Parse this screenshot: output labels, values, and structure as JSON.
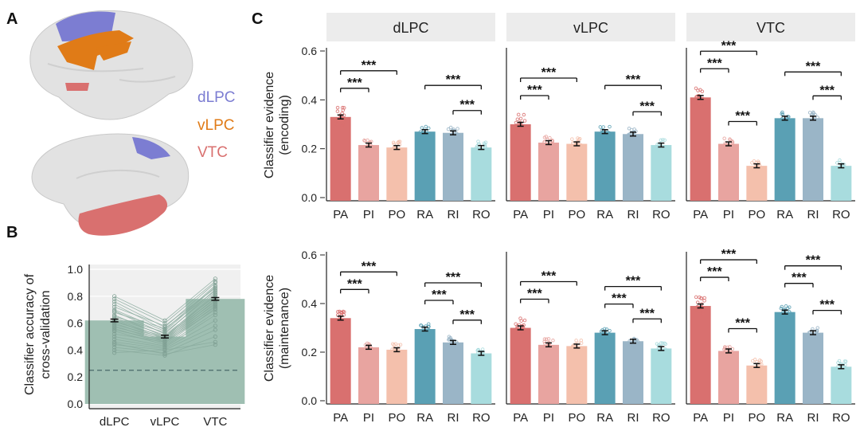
{
  "panel_labels": {
    "a": "A",
    "b": "B",
    "c": "C"
  },
  "brain_legend": [
    {
      "label": "dLPC",
      "color": "#7c7dd2"
    },
    {
      "label": "vLPC",
      "color": "#e07b17"
    },
    {
      "label": "VTC",
      "color": "#d9706f"
    }
  ],
  "chart_data": [
    {
      "type": "bar",
      "panel": "B",
      "title": "",
      "xlabel": "",
      "ylabel": "Classifier accuracy of cross-validation",
      "ylabel_lines": [
        "Classifier accuracy of",
        "cross-validation"
      ],
      "categories": [
        "dLPC",
        "vLPC",
        "VTC"
      ],
      "values": [
        0.62,
        0.5,
        0.78
      ],
      "sem": [
        0.01,
        0.01,
        0.01
      ],
      "ylim": [
        0,
        1.0
      ],
      "yticks": [
        0.0,
        0.2,
        0.4,
        0.6,
        0.8,
        1.0
      ],
      "ytick_labels": [
        "0.0",
        "0.2",
        "0.4",
        "0.6",
        "0.8",
        "1.0"
      ],
      "chance_level": 0.25,
      "bar_color": "#9fbfb2",
      "subject_lines": [
        [
          0.8,
          0.62,
          0.93
        ],
        [
          0.78,
          0.6,
          0.91
        ],
        [
          0.76,
          0.57,
          0.9
        ],
        [
          0.74,
          0.55,
          0.88
        ],
        [
          0.72,
          0.58,
          0.86
        ],
        [
          0.7,
          0.54,
          0.87
        ],
        [
          0.69,
          0.52,
          0.85
        ],
        [
          0.68,
          0.56,
          0.84
        ],
        [
          0.66,
          0.5,
          0.82
        ],
        [
          0.65,
          0.53,
          0.83
        ],
        [
          0.64,
          0.51,
          0.8
        ],
        [
          0.63,
          0.49,
          0.81
        ],
        [
          0.62,
          0.48,
          0.79
        ],
        [
          0.61,
          0.5,
          0.78
        ],
        [
          0.6,
          0.47,
          0.77
        ],
        [
          0.59,
          0.49,
          0.76
        ],
        [
          0.58,
          0.46,
          0.75
        ],
        [
          0.57,
          0.48,
          0.74
        ],
        [
          0.56,
          0.45,
          0.73
        ],
        [
          0.55,
          0.47,
          0.72
        ],
        [
          0.54,
          0.44,
          0.71
        ],
        [
          0.52,
          0.46,
          0.7
        ],
        [
          0.5,
          0.43,
          0.68
        ],
        [
          0.48,
          0.42,
          0.66
        ],
        [
          0.46,
          0.41,
          0.62
        ],
        [
          0.44,
          0.4,
          0.58
        ],
        [
          0.42,
          0.38,
          0.55
        ],
        [
          0.4,
          0.36,
          0.5
        ],
        [
          0.38,
          0.4,
          0.46
        ],
        [
          0.45,
          0.37,
          0.44
        ]
      ]
    },
    {
      "type": "bar",
      "panel": "C",
      "ylabel_lines": [
        "Classifier evidence",
        "(encoding)"
      ],
      "categories": [
        "PA",
        "PI",
        "PO",
        "RA",
        "RI",
        "RO"
      ],
      "ylim": [
        0,
        0.6
      ],
      "yticks": [
        0.0,
        0.2,
        0.4,
        0.6
      ],
      "ytick_labels": [
        "0.0",
        "0.2",
        "0.4",
        "0.6"
      ],
      "colors": [
        "#d9706f",
        "#e8a4a0",
        "#f4c0ac",
        "#5aa0b4",
        "#9ab5c7",
        "#a8dcde"
      ],
      "series": [
        {
          "name": "dLPC",
          "values": [
            0.33,
            0.215,
            0.205,
            0.27,
            0.265,
            0.205
          ],
          "sig": [
            [
              "PA",
              "PI",
              "***"
            ],
            [
              "PA",
              "PO",
              "***"
            ],
            [
              "RA",
              "RO",
              "***"
            ],
            [
              "RI",
              "RO",
              "***"
            ]
          ]
        },
        {
          "name": "vLPC",
          "values": [
            0.3,
            0.225,
            0.22,
            0.27,
            0.26,
            0.215
          ],
          "sig": [
            [
              "PA",
              "PI",
              "***"
            ],
            [
              "PA",
              "PO",
              "***"
            ],
            [
              "RA",
              "RO",
              "***"
            ],
            [
              "RI",
              "RO",
              "***"
            ]
          ]
        },
        {
          "name": "VTC",
          "values": [
            0.41,
            0.22,
            0.13,
            0.325,
            0.325,
            0.13
          ],
          "sig": [
            [
              "PA",
              "PI",
              "***"
            ],
            [
              "PA",
              "PO",
              "***"
            ],
            [
              "PI",
              "PO",
              "***"
            ],
            [
              "RA",
              "RO",
              "***"
            ],
            [
              "RI",
              "RO",
              "***"
            ]
          ]
        }
      ]
    },
    {
      "type": "bar",
      "panel": "C",
      "ylabel_lines": [
        "Classifier evidence",
        "(maintenance)"
      ],
      "categories": [
        "PA",
        "PI",
        "PO",
        "RA",
        "RI",
        "RO"
      ],
      "ylim": [
        0,
        0.6
      ],
      "yticks": [
        0.0,
        0.2,
        0.4,
        0.6
      ],
      "ytick_labels": [
        "0.0",
        "0.2",
        "0.4",
        "0.6"
      ],
      "colors": [
        "#d9706f",
        "#e8a4a0",
        "#f4c0ac",
        "#5aa0b4",
        "#9ab5c7",
        "#a8dcde"
      ],
      "series": [
        {
          "name": "dLPC",
          "values": [
            0.34,
            0.22,
            0.21,
            0.295,
            0.24,
            0.195
          ],
          "sig": [
            [
              "PA",
              "PI",
              "***"
            ],
            [
              "PA",
              "PO",
              "***"
            ],
            [
              "RA",
              "RI",
              "***"
            ],
            [
              "RA",
              "RO",
              "***"
            ],
            [
              "RI",
              "RO",
              "***"
            ]
          ]
        },
        {
          "name": "vLPC",
          "values": [
            0.3,
            0.23,
            0.225,
            0.28,
            0.245,
            0.215
          ],
          "sig": [
            [
              "PA",
              "PI",
              "***"
            ],
            [
              "PA",
              "PO",
              "***"
            ],
            [
              "RA",
              "RI",
              "***"
            ],
            [
              "RA",
              "RO",
              "***"
            ],
            [
              "RI",
              "RO",
              "***"
            ]
          ]
        },
        {
          "name": "VTC",
          "values": [
            0.39,
            0.205,
            0.145,
            0.365,
            0.28,
            0.14
          ],
          "sig": [
            [
              "PA",
              "PI",
              "***"
            ],
            [
              "PA",
              "PO",
              "***"
            ],
            [
              "PI",
              "PO",
              "***"
            ],
            [
              "RA",
              "RI",
              "***"
            ],
            [
              "RA",
              "RO",
              "***"
            ],
            [
              "RI",
              "RO",
              "***"
            ]
          ]
        }
      ]
    }
  ]
}
